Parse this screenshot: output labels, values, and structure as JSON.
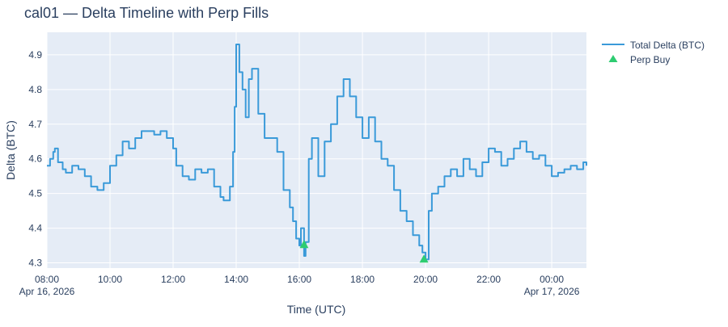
{
  "chart_data": {
    "type": "line",
    "title": "cal01 — Delta Timeline with Perp Fills",
    "xlabel": "Time (UTC)",
    "ylabel": "Delta (BTC)",
    "x_range_hours": [
      8,
      25.1
    ],
    "ylim": [
      4.285,
      4.965
    ],
    "grid": true,
    "legend_position": "top-right",
    "x_ticks": [
      {
        "hour": 8,
        "label": "08:00",
        "date": "Apr 16, 2026"
      },
      {
        "hour": 10,
        "label": "10:00",
        "date": ""
      },
      {
        "hour": 12,
        "label": "12:00",
        "date": ""
      },
      {
        "hour": 14,
        "label": "14:00",
        "date": ""
      },
      {
        "hour": 16,
        "label": "16:00",
        "date": ""
      },
      {
        "hour": 18,
        "label": "18:00",
        "date": ""
      },
      {
        "hour": 20,
        "label": "20:00",
        "date": ""
      },
      {
        "hour": 22,
        "label": "22:00",
        "date": ""
      },
      {
        "hour": 24,
        "label": "00:00",
        "date": "Apr 17, 2026"
      }
    ],
    "y_ticks": [
      4.3,
      4.4,
      4.5,
      4.6,
      4.7,
      4.8,
      4.9
    ],
    "y_tick_labels": [
      "4.3",
      "4.4",
      "4.5",
      "4.6",
      "4.7",
      "4.8",
      "4.9"
    ],
    "series": [
      {
        "name": "Total Delta (BTC)",
        "kind": "line",
        "color": "#3a9ad9",
        "x_hours": [
          8.0,
          8.1,
          8.2,
          8.25,
          8.35,
          8.5,
          8.6,
          8.8,
          9.0,
          9.2,
          9.4,
          9.6,
          9.8,
          10.0,
          10.2,
          10.4,
          10.6,
          10.8,
          11.0,
          11.2,
          11.4,
          11.6,
          11.8,
          12.0,
          12.1,
          12.3,
          12.5,
          12.7,
          12.9,
          13.1,
          13.3,
          13.5,
          13.6,
          13.8,
          13.9,
          13.95,
          14.0,
          14.1,
          14.2,
          14.3,
          14.4,
          14.5,
          14.7,
          14.9,
          15.1,
          15.3,
          15.5,
          15.7,
          15.8,
          15.9,
          16.0,
          16.05,
          16.15,
          16.2,
          16.3,
          16.4,
          16.6,
          16.8,
          17.0,
          17.2,
          17.4,
          17.6,
          17.8,
          18.0,
          18.2,
          18.4,
          18.6,
          18.8,
          19.0,
          19.2,
          19.4,
          19.6,
          19.8,
          19.9,
          20.0,
          20.1,
          20.2,
          20.4,
          20.6,
          20.8,
          21.0,
          21.2,
          21.4,
          21.6,
          21.8,
          22.0,
          22.2,
          22.4,
          22.6,
          22.8,
          23.0,
          23.2,
          23.4,
          23.6,
          23.8,
          24.0,
          24.2,
          24.4,
          24.6,
          24.8,
          25.0,
          25.1
        ],
        "y": [
          4.58,
          4.6,
          4.62,
          4.63,
          4.59,
          4.57,
          4.56,
          4.58,
          4.57,
          4.55,
          4.52,
          4.51,
          4.53,
          4.58,
          4.61,
          4.65,
          4.63,
          4.66,
          4.68,
          4.68,
          4.67,
          4.68,
          4.66,
          4.63,
          4.58,
          4.55,
          4.54,
          4.57,
          4.56,
          4.57,
          4.52,
          4.49,
          4.48,
          4.52,
          4.62,
          4.75,
          4.93,
          4.85,
          4.8,
          4.72,
          4.83,
          4.86,
          4.73,
          4.66,
          4.66,
          4.62,
          4.51,
          4.46,
          4.42,
          4.37,
          4.35,
          4.4,
          4.32,
          4.36,
          4.6,
          4.66,
          4.55,
          4.65,
          4.7,
          4.78,
          4.83,
          4.78,
          4.72,
          4.66,
          4.72,
          4.65,
          4.6,
          4.58,
          4.51,
          4.45,
          4.42,
          4.38,
          4.35,
          4.33,
          4.31,
          4.45,
          4.5,
          4.52,
          4.55,
          4.57,
          4.55,
          4.6,
          4.57,
          4.55,
          4.59,
          4.63,
          4.62,
          4.58,
          4.6,
          4.63,
          4.65,
          4.62,
          4.6,
          4.61,
          4.58,
          4.55,
          4.56,
          4.57,
          4.58,
          4.57,
          4.59,
          4.58
        ]
      },
      {
        "name": "Perp Buy",
        "kind": "markers",
        "marker": "triangle-up",
        "color": "#2ecc71",
        "points": [
          {
            "hour": 16.15,
            "y": 4.352
          },
          {
            "hour": 19.95,
            "y": 4.31
          }
        ]
      }
    ]
  }
}
